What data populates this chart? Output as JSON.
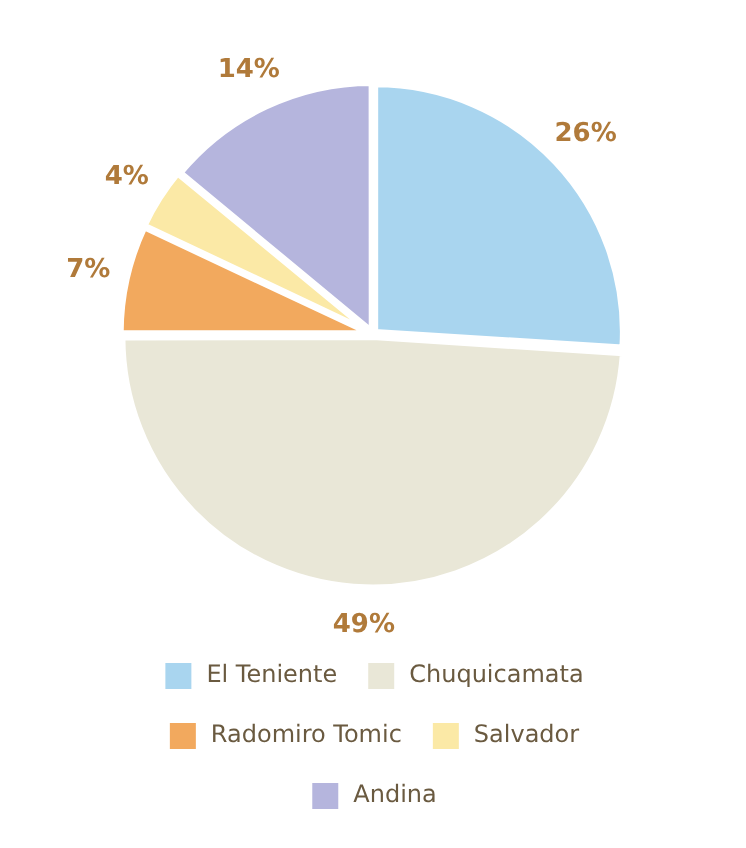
{
  "chart_data": {
    "type": "pie",
    "categories": [
      "El Teniente",
      "Chuquicamata",
      "Radomiro Tomic",
      "Salvador",
      "Andina"
    ],
    "values": [
      26,
      49,
      7,
      4,
      14
    ],
    "value_labels": [
      "26%",
      "49%",
      "7%",
      "4%",
      "14%"
    ],
    "colors": [
      "#a9d5ef",
      "#e9e7d7",
      "#f2a95e",
      "#fbe9a6",
      "#b5b5dd"
    ],
    "legend": "bottom"
  }
}
